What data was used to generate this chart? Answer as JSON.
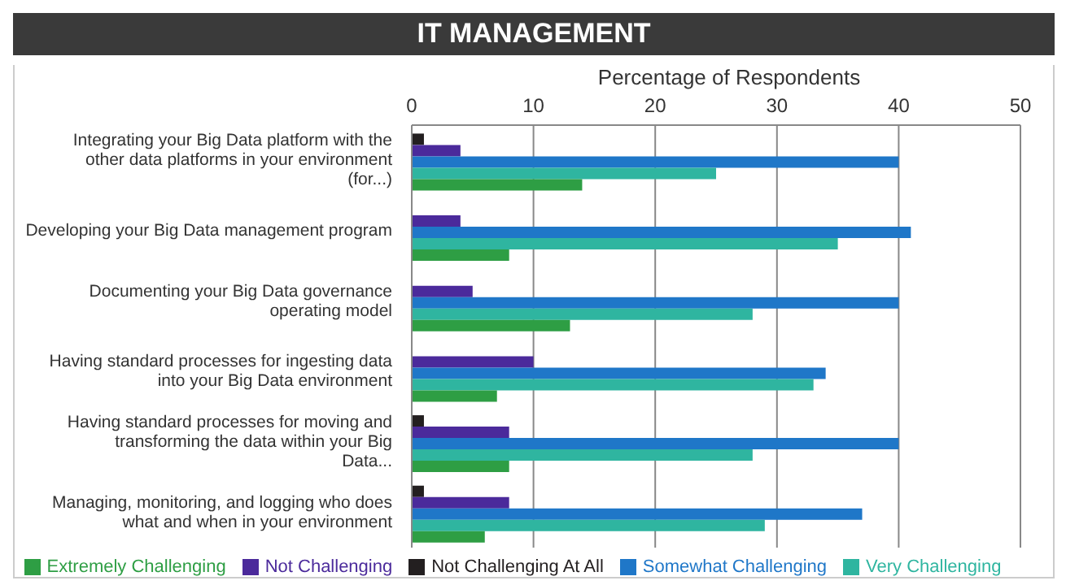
{
  "chart_data": {
    "type": "bar",
    "orientation": "horizontal",
    "title": "IT MANAGEMENT",
    "xlabel": "Percentage of Respondents",
    "categories": [
      "Integrating your Big Data platform with the other data platforms in your environment (for...)",
      "Developing your Big Data management program",
      "Documenting your Big Data governance operating model",
      "Having standard processes for ingesting data into your Big Data environment",
      "Having standard processes for moving and transforming the data within your Big Data...",
      "Managing, monitoring, and logging who does what and when in your environment"
    ],
    "series": [
      {
        "name": "Not Challenging At All",
        "color": "#231f20",
        "values": [
          1,
          0,
          0,
          0,
          1,
          1
        ]
      },
      {
        "name": "Not Challenging",
        "color": "#4b2a9b",
        "values": [
          4,
          4,
          5,
          10,
          8,
          8
        ]
      },
      {
        "name": "Somewhat Challenging",
        "color": "#1f77c8",
        "values": [
          40,
          41,
          40,
          34,
          40,
          37
        ]
      },
      {
        "name": "Very Challenging",
        "color": "#2fb5a0",
        "values": [
          25,
          35,
          28,
          33,
          28,
          29
        ]
      },
      {
        "name": "Extremely Challenging",
        "color": "#2e9e44",
        "values": [
          14,
          8,
          13,
          7,
          8,
          6
        ]
      }
    ],
    "xlim": [
      0,
      50
    ],
    "xticks": [
      0,
      10,
      20,
      30,
      40,
      50
    ],
    "grid": "x",
    "legend": "bottom"
  }
}
